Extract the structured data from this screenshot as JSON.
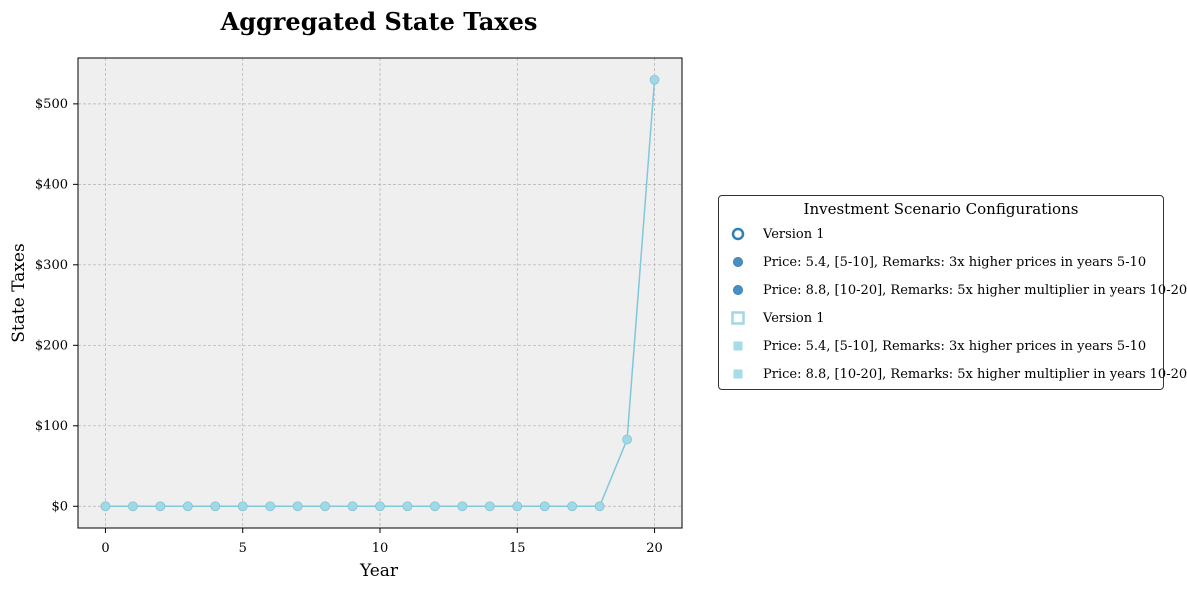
{
  "chart_data": {
    "type": "line",
    "title": "Aggregated State Taxes",
    "xlabel": "Year",
    "ylabel": "State Taxes",
    "x": [
      0,
      1,
      2,
      3,
      4,
      5,
      6,
      7,
      8,
      9,
      10,
      11,
      12,
      13,
      14,
      15,
      16,
      17,
      18,
      19,
      20
    ],
    "series": [
      {
        "name": "Version 1",
        "values": [
          0,
          0,
          0,
          0,
          0,
          0,
          0,
          0,
          0,
          0,
          0,
          0,
          0,
          0,
          0,
          0,
          0,
          0,
          0,
          83,
          530
        ]
      }
    ],
    "xlim": [
      -1,
      21
    ],
    "ylim": [
      -27,
      557
    ],
    "xticks": [
      0,
      5,
      10,
      15,
      20
    ],
    "xtick_labels": [
      "0",
      "5",
      "10",
      "15",
      "20"
    ],
    "yticks": [
      0,
      100,
      200,
      300,
      400,
      500
    ],
    "ytick_labels": [
      "$0",
      "$100",
      "$200",
      "$300",
      "$400",
      "$500"
    ],
    "grid": true,
    "background": "#efefef",
    "line_color": "#7ec8dc",
    "marker_color": "#9fd8e6",
    "legend_placement": "right"
  },
  "legend": {
    "title": "Investment Scenario Configurations",
    "items": [
      {
        "label": "Version 1",
        "marker": "circle-open",
        "color": "#2f7fb5"
      },
      {
        "label": "Price: 5.4, [5-10], Remarks: 3x higher prices in years 5-10",
        "marker": "circle",
        "color": "#4a8fc4"
      },
      {
        "label": "Price: 8.8, [10-20], Remarks: 5x higher multiplier in years 10-20",
        "marker": "circle",
        "color": "#4a8fc4"
      },
      {
        "label": "Version 1",
        "marker": "square-open",
        "color": "#9fd8e6"
      },
      {
        "label": "Price: 5.4, [5-10], Remarks: 3x higher prices in years 5-10",
        "marker": "square",
        "color": "#a8dbe8"
      },
      {
        "label": "Price: 8.8, [10-20], Remarks: 5x higher multiplier in years 10-20",
        "marker": "square",
        "color": "#a8dbe8"
      }
    ]
  }
}
